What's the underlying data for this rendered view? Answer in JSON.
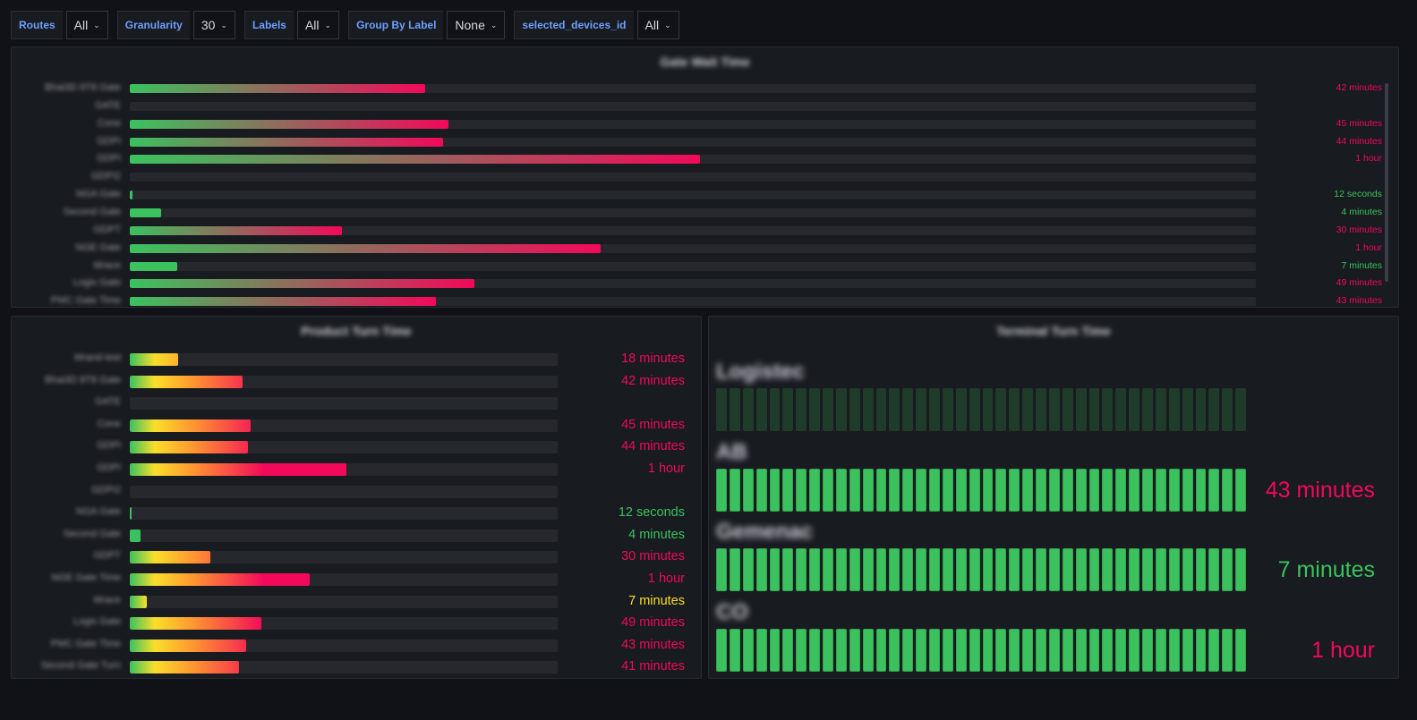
{
  "colors": {
    "red": "#f2095a",
    "green": "#3bc25e",
    "orange": "#ff9830",
    "yellow": "#fade2a"
  },
  "toolbar": [
    {
      "label": "Routes",
      "value": "All"
    },
    {
      "label": "Granularity",
      "value": "30"
    },
    {
      "label": "Labels",
      "value": "All"
    },
    {
      "label": "Group By Label",
      "value": "None"
    },
    {
      "label": "selected_devices_id",
      "value": "All"
    }
  ],
  "panel_top": {
    "title": "Gate Wait Time",
    "rows": [
      {
        "label": "Bhai3D 8T8 Gate",
        "fill": 0.262,
        "value": "42 minutes",
        "status": "red"
      },
      {
        "label": "GATE",
        "fill": 0,
        "value": "",
        "status": "none"
      },
      {
        "label": "Cone",
        "fill": 0.283,
        "value": "45 minutes",
        "status": "red"
      },
      {
        "label": "GDPI",
        "fill": 0.278,
        "value": "44 minutes",
        "status": "red"
      },
      {
        "label": "GDPI",
        "fill": 0.506,
        "value": "1 hour",
        "status": "red"
      },
      {
        "label": "GDPI2",
        "fill": 0,
        "value": "",
        "status": "none"
      },
      {
        "label": "NGA Gate",
        "fill": 0.002,
        "value": "12 seconds",
        "status": "green"
      },
      {
        "label": "Second Gate",
        "fill": 0.028,
        "value": "4 minutes",
        "status": "green"
      },
      {
        "label": "GDPT",
        "fill": 0.188,
        "value": "30 minutes",
        "status": "red"
      },
      {
        "label": "NGE Gate",
        "fill": 0.418,
        "value": "1 hour",
        "status": "red"
      },
      {
        "label": "Mrace",
        "fill": 0.042,
        "value": "7 minutes",
        "status": "green"
      },
      {
        "label": "Logix Gate",
        "fill": 0.306,
        "value": "49 minutes",
        "status": "red"
      },
      {
        "label": "PMC Gate Time",
        "fill": 0.272,
        "value": "43 minutes",
        "status": "red"
      }
    ]
  },
  "panel_left": {
    "title": "Product Turn Time",
    "rows": [
      {
        "label": "Mrand test",
        "fill": 0.113,
        "value": "18 minutes",
        "status": "red"
      },
      {
        "label": "Bhai3D 8T8 Gate",
        "fill": 0.263,
        "value": "42 minutes",
        "status": "red"
      },
      {
        "label": "GATE",
        "fill": 0,
        "value": "",
        "status": "none"
      },
      {
        "label": "Cone",
        "fill": 0.283,
        "value": "45 minutes",
        "status": "red"
      },
      {
        "label": "GDPI",
        "fill": 0.277,
        "value": "44 minutes",
        "status": "red"
      },
      {
        "label": "GDPI",
        "fill": 0.506,
        "value": "1 hour",
        "status": "red"
      },
      {
        "label": "GDPI2",
        "fill": 0,
        "value": "",
        "status": "none"
      },
      {
        "label": "NGA Gate",
        "fill": 0.004,
        "value": "12 seconds",
        "status": "green"
      },
      {
        "label": "Second Gate",
        "fill": 0.025,
        "value": "4 minutes",
        "status": "green"
      },
      {
        "label": "GDPT",
        "fill": 0.188,
        "value": "30 minutes",
        "status": "red"
      },
      {
        "label": "NGE Gate Time",
        "fill": 0.421,
        "value": "1 hour",
        "status": "red"
      },
      {
        "label": "Mrace",
        "fill": 0.04,
        "value": "7 minutes",
        "status": "yellow"
      },
      {
        "label": "Logix Gate",
        "fill": 0.308,
        "value": "49 minutes",
        "status": "red"
      },
      {
        "label": "PMC Gate Time",
        "fill": 0.273,
        "value": "43 minutes",
        "status": "red"
      },
      {
        "label": "Second Gate Turn",
        "fill": 0.256,
        "value": "41 minutes",
        "status": "red"
      }
    ]
  },
  "panel_right": {
    "title": "Terminal Turn Time",
    "gauges": [
      {
        "name": "Logistec",
        "value": "",
        "status": "dim"
      },
      {
        "name": "AB",
        "value": "43 minutes",
        "status": "red"
      },
      {
        "name": "Gemenac",
        "value": "7 minutes",
        "status": "green"
      },
      {
        "name": "CO",
        "value": "1 hour",
        "status": "red"
      }
    ]
  }
}
